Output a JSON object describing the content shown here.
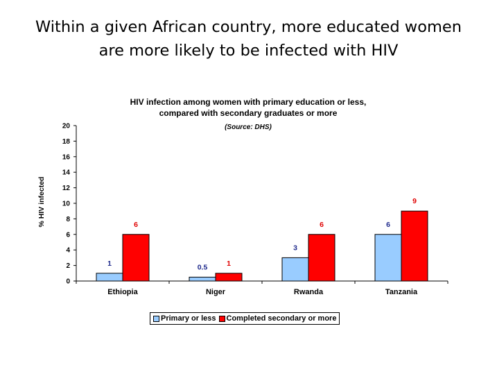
{
  "slide": {
    "title_line1": "Within a given African country, more educated women",
    "title_line2": "are more likely to be infected with HIV"
  },
  "chart_data": {
    "type": "bar",
    "title_line1": "HIV infection among women with primary education or less,",
    "title_line2": "compared with secondary graduates or more",
    "source": "(Source: DHS)",
    "xlabel": "",
    "ylabel": "% HIV infected",
    "ylim": [
      0,
      20
    ],
    "yticks": [
      0,
      2,
      4,
      6,
      8,
      10,
      12,
      14,
      16,
      18,
      20
    ],
    "categories": [
      "Ethiopia",
      "Niger",
      "Rwanda",
      "Tanzania"
    ],
    "series": [
      {
        "name": "Primary or less",
        "values": [
          1,
          0.5,
          3,
          6
        ],
        "labels": [
          "1",
          "0.5",
          "3",
          "6"
        ],
        "color": "#99ccff",
        "label_color": "#1f2a8c"
      },
      {
        "name": "Completed secondary or more",
        "values": [
          6,
          1,
          6,
          9
        ],
        "labels": [
          "6",
          "1",
          "6",
          "9"
        ],
        "color": "#ff0000",
        "label_color": "#e00000"
      }
    ],
    "grid": false,
    "legend": "bottom"
  }
}
